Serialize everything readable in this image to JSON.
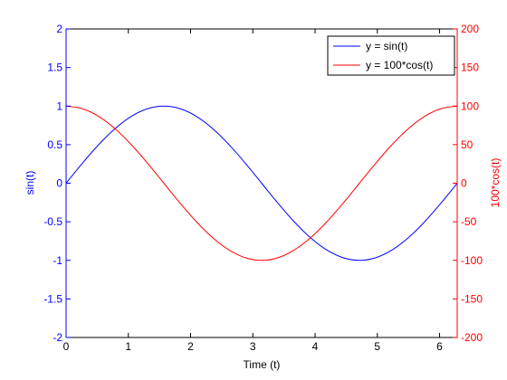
{
  "chart_data": {
    "type": "line",
    "xlabel": "Time (t)",
    "ylabel_left": "sin(t)",
    "ylabel_right": "100*cos(t)",
    "xlim": [
      0,
      6.2832
    ],
    "ylim_left": [
      -2,
      2
    ],
    "ylim_right": [
      -200,
      200
    ],
    "x_ticks": [
      "0",
      "1",
      "2",
      "3",
      "4",
      "5",
      "6"
    ],
    "y_ticks_left": [
      "-2",
      "-1.5",
      "-1",
      "-0.5",
      "0",
      "0.5",
      "1",
      "1.5",
      "2"
    ],
    "y_ticks_right": [
      "-200",
      "-150",
      "-100",
      "-50",
      "0",
      "50",
      "100",
      "150",
      "200"
    ],
    "grid": false,
    "legend_position": "top-right",
    "x": [
      0,
      0.2618,
      0.5236,
      0.7854,
      1.0472,
      1.309,
      1.5708,
      1.8326,
      2.0944,
      2.3562,
      2.618,
      2.8798,
      3.1416,
      3.4034,
      3.6652,
      3.927,
      4.1888,
      4.4506,
      4.7124,
      4.9742,
      5.236,
      5.4978,
      5.7596,
      6.0214,
      6.2832
    ],
    "series": [
      {
        "name": "y = sin(t)",
        "axis": "left",
        "color": "#0000ff",
        "values": [
          0,
          0.2588,
          0.5,
          0.7071,
          0.866,
          0.9659,
          1,
          0.9659,
          0.866,
          0.7071,
          0.5,
          0.2588,
          0,
          -0.2588,
          -0.5,
          -0.7071,
          -0.866,
          -0.9659,
          -1,
          -0.9659,
          -0.866,
          -0.7071,
          -0.5,
          -0.2588,
          0
        ]
      },
      {
        "name": "y = 100*cos(t)",
        "axis": "right",
        "color": "#ff0000",
        "values": [
          100,
          96.59,
          86.6,
          70.71,
          50,
          25.88,
          0,
          -25.88,
          -50,
          -70.71,
          -86.6,
          -96.59,
          -100,
          -96.59,
          -86.6,
          -70.71,
          -50,
          -25.88,
          0,
          25.88,
          50,
          70.71,
          86.6,
          96.59,
          100
        ]
      }
    ]
  }
}
